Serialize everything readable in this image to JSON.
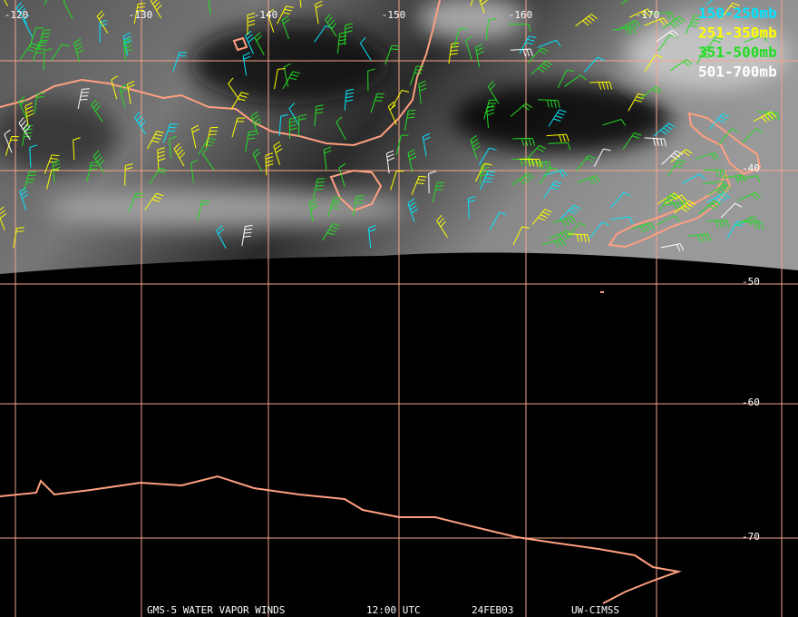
{
  "map": {
    "longitude_labels": [
      "-120",
      "-130",
      "-140",
      "-150",
      "-160",
      "-170"
    ],
    "latitude_labels": [
      "-40",
      "-50",
      "-60",
      "-70"
    ],
    "legend": [
      {
        "label": "150-250mb",
        "color": "#00e5ff"
      },
      {
        "label": "251-350mb",
        "color": "#ffff00"
      },
      {
        "label": "351-500mb",
        "color": "#22dd22"
      },
      {
        "label": "501-700mb",
        "color": "#ffffff"
      }
    ],
    "footer": [
      "GMS-5 WATER VAPOR WINDS",
      "12:00 UTC",
      "24FEB03",
      "UW-CIMSS"
    ]
  }
}
